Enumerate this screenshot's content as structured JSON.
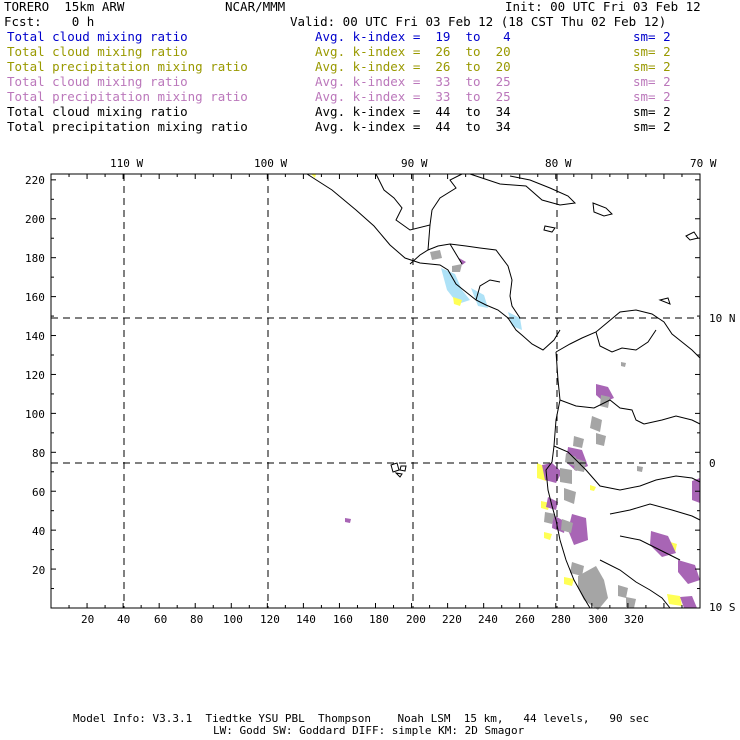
{
  "header": {
    "model": "TORERO  15km ARW",
    "org": "NCAR/MMM",
    "init": "Init: 00 UTC Fri 03 Feb 12",
    "fcst": "Fcst:    0 h",
    "valid": "Valid: 00 UTC Fri 03 Feb 12 (18 CST Thu 02 Feb 12)"
  },
  "legend": [
    {
      "field": "Total cloud mixing ratio",
      "kindex": "Avg. k-index =  19  to   4",
      "sm": "sm= 2",
      "color": "#0000cc"
    },
    {
      "field": "Total cloud mixing ratio",
      "kindex": "Avg. k-index =  26  to  20",
      "sm": "sm= 2",
      "color": "#999900"
    },
    {
      "field": "Total precipitation mixing ratio",
      "kindex": "Avg. k-index =  26  to  20",
      "sm": "sm= 2",
      "color": "#999900"
    },
    {
      "field": "Total cloud mixing ratio",
      "kindex": "Avg. k-index =  33  to  25",
      "sm": "sm= 2",
      "color": "#bb77bb"
    },
    {
      "field": "Total precipitation mixing ratio",
      "kindex": "Avg. k-index =  33  to  25",
      "sm": "sm= 2",
      "color": "#bb77bb"
    },
    {
      "field": "Total cloud mixing ratio",
      "kindex": "Avg. k-index =  44  to  34",
      "sm": "sm= 2",
      "color": "#000000"
    },
    {
      "field": "Total precipitation mixing ratio",
      "kindex": "Avg. k-index =  44  to  34",
      "sm": "sm= 2",
      "color": "#000000"
    }
  ],
  "map": {
    "lon_labels": [
      "110 W",
      "100 W",
      "90 W",
      "80 W",
      "70 W"
    ],
    "lat_labels": [
      "10 N",
      "0",
      "10 S"
    ],
    "x_ticks": [
      "20",
      "40",
      "60",
      "80",
      "100",
      "120",
      "140",
      "160",
      "180",
      "200",
      "220",
      "240",
      "260",
      "280",
      "300",
      "320"
    ],
    "y_ticks": [
      "220",
      "200",
      "180",
      "160",
      "140",
      "120",
      "100",
      "80",
      "60",
      "40",
      "20"
    ],
    "colors": {
      "land_outline": "#000000",
      "kindex_low": "#aee2f7",
      "kindex_mid": "#ffff55",
      "kindex_high": "#a865b5",
      "kindex_top": "#a5a5a5",
      "grid": "#000000"
    }
  },
  "footer": {
    "line1": "Model Info: V3.3.1  Tiedtke YSU PBL  Thompson    Noah LSM  15 km,   44 levels,   90 sec",
    "line2": "LW: Godd SW: Goddard DIFF: simple KM: 2D Smagor"
  }
}
